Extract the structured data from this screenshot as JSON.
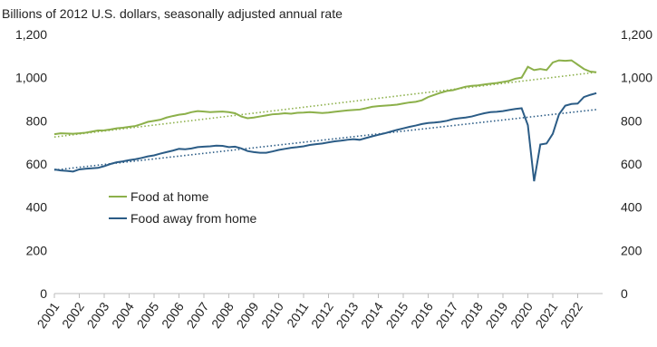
{
  "chart_data": {
    "type": "line",
    "title": "Billions of 2012 U.S. dollars, seasonally adjusted annual rate",
    "xlim": [
      2001,
      2023
    ],
    "xticks": [
      2001,
      2002,
      2003,
      2004,
      2005,
      2006,
      2007,
      2008,
      2009,
      2010,
      2011,
      2012,
      2013,
      2014,
      2015,
      2016,
      2017,
      2018,
      2019,
      2020,
      2021,
      2022
    ],
    "ylim": [
      0,
      1200
    ],
    "yticks": [
      0,
      200,
      400,
      600,
      800,
      {
        "value": 1000,
        "label": "1,000"
      },
      {
        "value": 1200,
        "label": "1,200"
      }
    ],
    "y2lim": [
      0,
      1200
    ],
    "y2ticks": [
      0,
      200,
      400,
      600,
      800,
      {
        "value": 1000,
        "label": "1,000"
      },
      {
        "value": 1200,
        "label": "1,200"
      }
    ],
    "x": [
      2001,
      2001.25,
      2001.5,
      2001.75,
      2002,
      2002.25,
      2002.5,
      2002.75,
      2003,
      2003.25,
      2003.5,
      2003.75,
      2004,
      2004.25,
      2004.5,
      2004.75,
      2005,
      2005.25,
      2005.5,
      2005.75,
      2006,
      2006.25,
      2006.5,
      2006.75,
      2007,
      2007.25,
      2007.5,
      2007.75,
      2008,
      2008.25,
      2008.5,
      2008.75,
      2009,
      2009.25,
      2009.5,
      2009.75,
      2010,
      2010.25,
      2010.5,
      2010.75,
      2011,
      2011.25,
      2011.5,
      2011.75,
      2012,
      2012.25,
      2012.5,
      2012.75,
      2013,
      2013.25,
      2013.5,
      2013.75,
      2014,
      2014.25,
      2014.5,
      2014.75,
      2015,
      2015.25,
      2015.5,
      2015.75,
      2016,
      2016.25,
      2016.5,
      2016.75,
      2017,
      2017.25,
      2017.5,
      2017.75,
      2018,
      2018.25,
      2018.5,
      2018.75,
      2019,
      2019.25,
      2019.5,
      2019.75,
      2020,
      2020.25,
      2020.5,
      2020.75,
      2021,
      2021.25,
      2021.5,
      2021.75,
      2022,
      2022.25,
      2022.5,
      2022.75
    ],
    "series": [
      {
        "name": "Food at home",
        "color": "#8cb04a",
        "values": [
          738,
          742,
          741,
          740,
          742,
          745,
          750,
          755,
          756,
          760,
          765,
          768,
          772,
          776,
          785,
          795,
          800,
          805,
          815,
          822,
          828,
          832,
          840,
          845,
          843,
          840,
          842,
          843,
          840,
          835,
          820,
          812,
          815,
          820,
          825,
          830,
          832,
          835,
          833,
          837,
          838,
          840,
          838,
          836,
          838,
          842,
          845,
          848,
          850,
          852,
          858,
          865,
          868,
          870,
          872,
          875,
          880,
          885,
          888,
          895,
          910,
          920,
          930,
          938,
          942,
          950,
          958,
          962,
          964,
          968,
          972,
          975,
          980,
          985,
          995,
          1000,
          1050,
          1035,
          1040,
          1035,
          1070,
          1080,
          1078,
          1080,
          1060,
          1040,
          1028,
          1025
        ],
        "trend": {
          "x": [
            2001,
            2022.75
          ],
          "values": [
            725,
            1025
          ]
        }
      },
      {
        "name": "Food away from home",
        "color": "#2b5c86",
        "values": [
          575,
          570,
          568,
          565,
          575,
          578,
          580,
          582,
          590,
          600,
          608,
          612,
          618,
          622,
          628,
          635,
          640,
          648,
          655,
          662,
          670,
          668,
          672,
          678,
          680,
          682,
          685,
          684,
          678,
          680,
          672,
          660,
          655,
          652,
          652,
          658,
          665,
          670,
          675,
          678,
          682,
          688,
          692,
          695,
          700,
          705,
          708,
          712,
          715,
          712,
          720,
          728,
          735,
          742,
          750,
          758,
          765,
          772,
          778,
          785,
          790,
          792,
          795,
          800,
          808,
          812,
          815,
          820,
          828,
          835,
          840,
          842,
          845,
          850,
          855,
          858,
          780,
          520,
          690,
          695,
          740,
          830,
          870,
          878,
          880,
          910,
          920,
          928
        ],
        "trend": {
          "x": [
            2001,
            2022.75
          ],
          "values": [
            572,
            852
          ]
        }
      }
    ]
  }
}
